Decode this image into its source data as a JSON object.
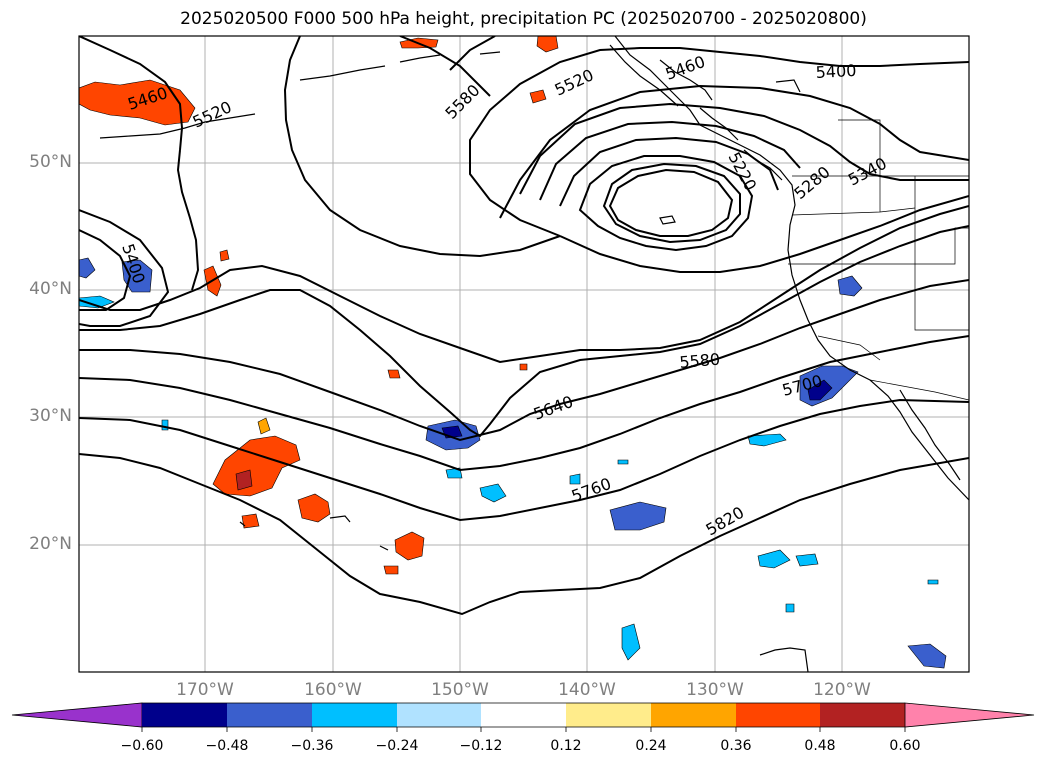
{
  "title": "2025020500 F000 500 hPa height, precipitation PC (2025020700 - 2025020800)",
  "lat_labels": [
    "50°N",
    "40°N",
    "30°N",
    "20°N"
  ],
  "lon_labels": [
    "170°W",
    "160°W",
    "150°W",
    "140°W",
    "130°W",
    "120°W"
  ],
  "contour_labels": [
    "5460",
    "5520",
    "5580",
    "5520",
    "5460",
    "5400",
    "5220",
    "5280",
    "5340",
    "5400",
    "5580",
    "5640",
    "5700",
    "5760",
    "5820"
  ],
  "colorbar": {
    "ticks": [
      "−0.60",
      "−0.48",
      "−0.36",
      "−0.24",
      "−0.12",
      "0.12",
      "0.24",
      "0.36",
      "0.48",
      "0.60"
    ],
    "colors": [
      "#9932cc",
      "#00008b",
      "#3a5fcd",
      "#00bfff",
      "#b0e2ff",
      "#ffffff",
      "#ffec8b",
      "#ffa500",
      "#ff4500",
      "#b22222",
      "#ff82ab"
    ]
  }
}
